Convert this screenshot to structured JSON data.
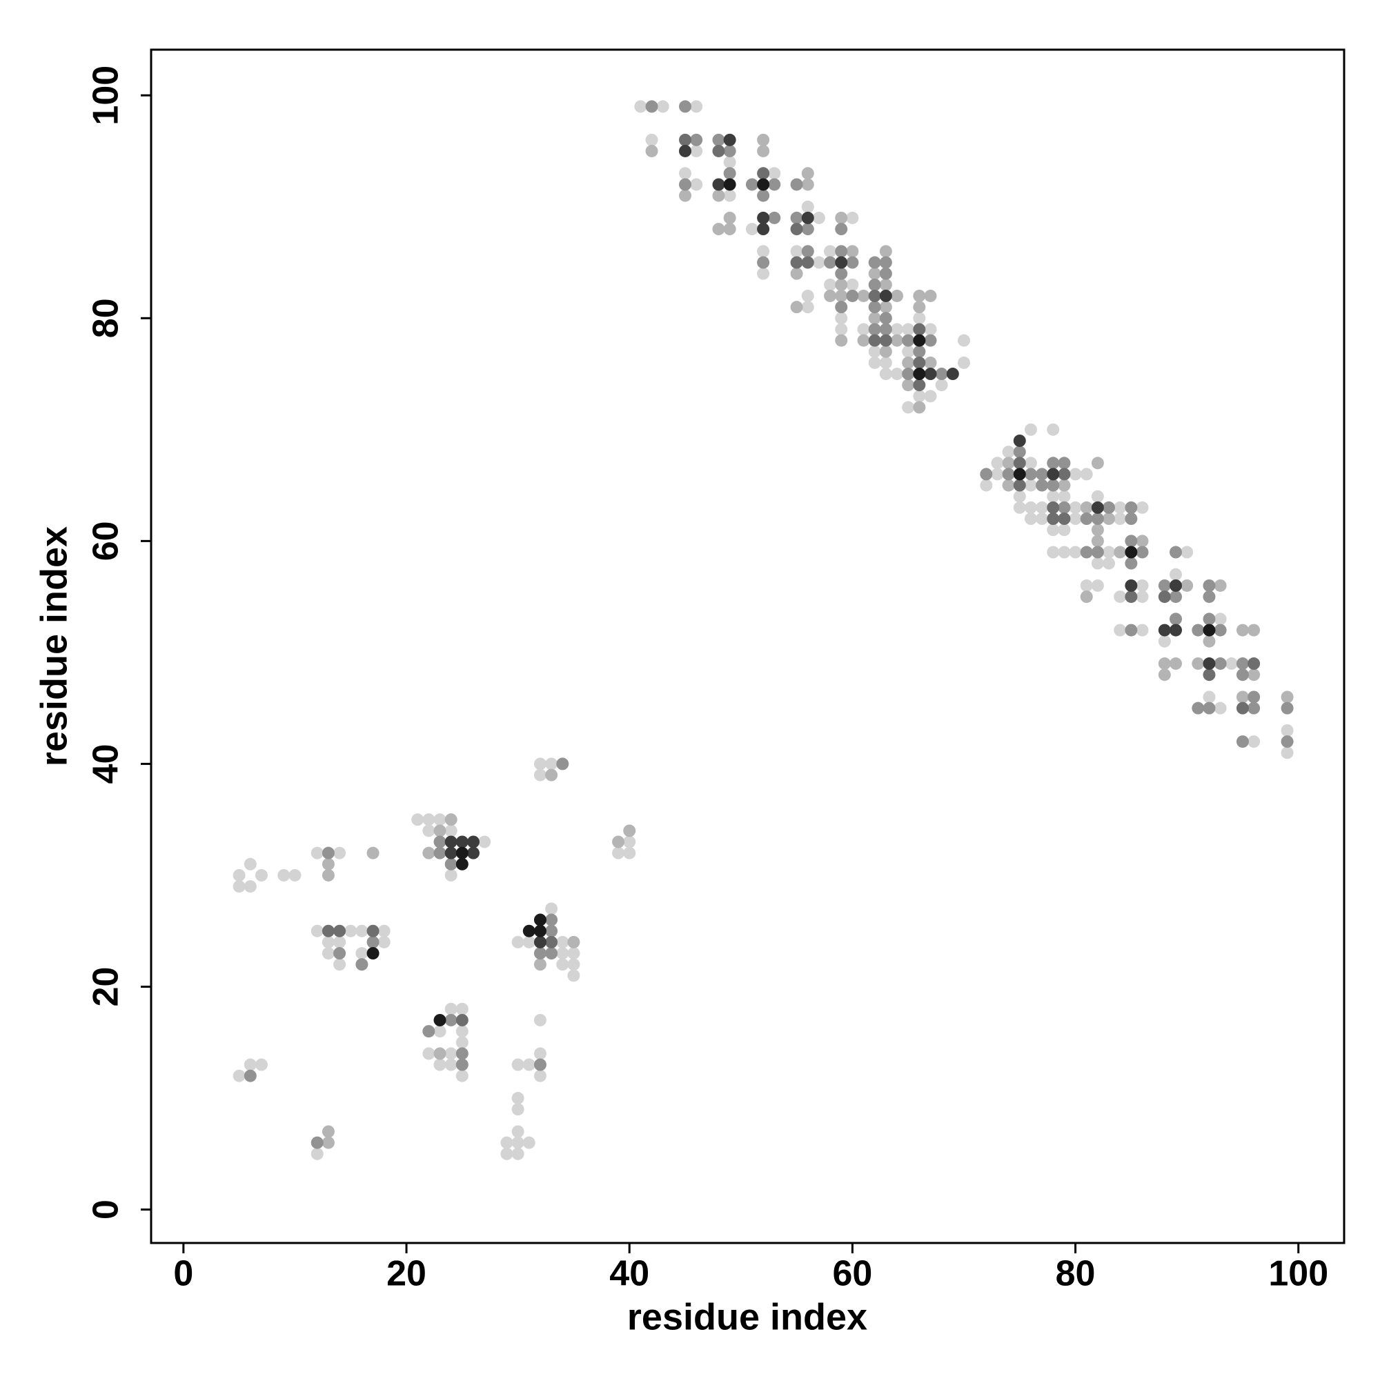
{
  "chart_data": {
    "type": "scatter",
    "x_label": "residue index",
    "y_label": "residue index",
    "xlim": [
      -2.9,
      104.1
    ],
    "ylim": [
      -3,
      104.1
    ],
    "xticks": [
      0,
      20,
      40,
      60,
      80,
      100
    ],
    "yticks": [
      0,
      20,
      40,
      60,
      80,
      100
    ],
    "series": [
      {
        "color": "#d3d3d3",
        "x": [
          5,
          5,
          6,
          6,
          7,
          9,
          10,
          12,
          14,
          12,
          15,
          16,
          18,
          13,
          14,
          13,
          14,
          16,
          18,
          5,
          6,
          7,
          12,
          21,
          22,
          23,
          22,
          24,
          27,
          24,
          32,
          33,
          32,
          40,
          39,
          40,
          33,
          30,
          31,
          34,
          34,
          35,
          34,
          35,
          35,
          24,
          25,
          23,
          25,
          25,
          22,
          24,
          23,
          24,
          25,
          32,
          32,
          30,
          31,
          32,
          30,
          30,
          30,
          29,
          30,
          31,
          29,
          30,
          41,
          43,
          46,
          42,
          46,
          49,
          45,
          53,
          46,
          49,
          56,
          57,
          60,
          51,
          52,
          55,
          58,
          57,
          52,
          58,
          60,
          56,
          56,
          59,
          66,
          59,
          61,
          64,
          65,
          67,
          70,
          62,
          65,
          62,
          63,
          70,
          63,
          64,
          68,
          66,
          67,
          65,
          76,
          78,
          74,
          73,
          76,
          73,
          80,
          81,
          72,
          76,
          75,
          78,
          79,
          82,
          75,
          76,
          77,
          80,
          84,
          86,
          76,
          77,
          80,
          84,
          78,
          79,
          78,
          79,
          80,
          83,
          90,
          82,
          83,
          89,
          81,
          82,
          86,
          84,
          86,
          93,
          84,
          86,
          88,
          94,
          92,
          93,
          99,
          96,
          99
        ],
        "values": [
          30,
          29,
          31,
          29,
          30,
          30,
          30,
          32,
          32,
          25,
          25,
          25,
          25,
          24,
          24,
          23,
          22,
          23,
          24,
          12,
          13,
          13,
          5,
          35,
          35,
          35,
          34,
          34,
          33,
          30,
          40,
          40,
          39,
          33,
          32,
          32,
          27,
          24,
          24,
          24,
          23,
          23,
          22,
          22,
          21,
          18,
          18,
          16,
          16,
          15,
          14,
          14,
          13,
          13,
          12,
          17,
          14,
          13,
          13,
          12,
          10,
          9,
          7,
          6,
          6,
          6,
          5,
          5,
          99,
          99,
          99,
          96,
          95,
          94,
          93,
          93,
          92,
          91,
          90,
          89,
          89,
          88,
          86,
          86,
          86,
          85,
          84,
          83,
          83,
          82,
          81,
          80,
          80,
          79,
          79,
          79,
          79,
          79,
          78,
          77,
          77,
          76,
          76,
          76,
          75,
          75,
          74,
          73,
          73,
          72,
          70,
          70,
          68,
          67,
          67,
          66,
          66,
          66,
          65,
          65,
          64,
          64,
          64,
          64,
          63,
          63,
          63,
          63,
          63,
          63,
          62,
          62,
          62,
          62,
          61,
          61,
          59,
          59,
          59,
          59,
          59,
          58,
          58,
          57,
          56,
          56,
          56,
          55,
          55,
          53,
          52,
          52,
          51,
          49,
          46,
          45,
          43,
          42,
          41
        ]
      },
      {
        "color": "#b4b4b4",
        "x": [
          13,
          13,
          17,
          13,
          13,
          24,
          23,
          22,
          33,
          39,
          40,
          35,
          32,
          23,
          42,
          52,
          52,
          56,
          56,
          45,
          48,
          49,
          59,
          48,
          49,
          60,
          63,
          55,
          62,
          59,
          63,
          58,
          59,
          61,
          64,
          66,
          67,
          55,
          63,
          66,
          62,
          59,
          61,
          64,
          63,
          65,
          67,
          65,
          66,
          74,
          82,
          74,
          79,
          81,
          83,
          82,
          82,
          86,
          84,
          90,
          93,
          81,
          95,
          96,
          92,
          88,
          89,
          91,
          88,
          96,
          95,
          99
        ],
        "values": [
          31,
          30,
          32,
          7,
          6,
          35,
          34,
          32,
          39,
          33,
          34,
          24,
          22,
          14,
          95,
          96,
          95,
          93,
          92,
          91,
          91,
          89,
          89,
          88,
          88,
          86,
          86,
          84,
          84,
          83,
          83,
          82,
          82,
          82,
          82,
          82,
          82,
          81,
          81,
          81,
          80,
          78,
          78,
          78,
          77,
          76,
          76,
          74,
          72,
          67,
          67,
          65,
          65,
          63,
          62,
          61,
          60,
          60,
          59,
          56,
          56,
          55,
          52,
          52,
          51,
          49,
          49,
          49,
          48,
          48,
          46,
          46
        ]
      },
      {
        "color": "#929292",
        "x": [
          13,
          17,
          14,
          16,
          6,
          12,
          23,
          23,
          24,
          34,
          33,
          33,
          32,
          33,
          24,
          22,
          25,
          25,
          32,
          42,
          45,
          46,
          48,
          49,
          49,
          45,
          51,
          53,
          55,
          52,
          53,
          55,
          56,
          59,
          56,
          59,
          52,
          58,
          60,
          62,
          63,
          59,
          63,
          62,
          60,
          59,
          62,
          63,
          62,
          63,
          65,
          67,
          66,
          65,
          68,
          75,
          78,
          79,
          72,
          74,
          76,
          77,
          77,
          78,
          79,
          83,
          85,
          81,
          82,
          85,
          85,
          81,
          82,
          86,
          89,
          85,
          88,
          92,
          89,
          92,
          89,
          92,
          85,
          91,
          93,
          93,
          95,
          95,
          96,
          91,
          92,
          96,
          99,
          95,
          99
        ],
        "values": [
          32,
          24,
          23,
          22,
          12,
          6,
          33,
          32,
          31,
          40,
          26,
          25,
          23,
          23,
          17,
          16,
          14,
          13,
          13,
          99,
          99,
          96,
          96,
          95,
          93,
          92,
          92,
          92,
          92,
          91,
          89,
          89,
          88,
          88,
          86,
          86,
          85,
          85,
          85,
          85,
          85,
          84,
          84,
          83,
          82,
          81,
          81,
          80,
          79,
          79,
          78,
          78,
          77,
          75,
          75,
          68,
          67,
          67,
          66,
          66,
          66,
          66,
          65,
          65,
          63,
          63,
          63,
          62,
          62,
          62,
          60,
          59,
          59,
          59,
          59,
          58,
          56,
          56,
          55,
          55,
          53,
          53,
          52,
          52,
          52,
          49,
          49,
          48,
          46,
          45,
          45,
          45,
          45,
          42,
          42
        ]
      },
      {
        "color": "#6e6e6e",
        "x": [
          13,
          14,
          17,
          25,
          33,
          45,
          48,
          52,
          55,
          55,
          56,
          62,
          66,
          62,
          63,
          66,
          66,
          75,
          79,
          75,
          78,
          78,
          79,
          85,
          88,
          92,
          96,
          95
        ],
        "values": [
          25,
          25,
          25,
          17,
          24,
          96,
          95,
          93,
          88,
          85,
          85,
          82,
          79,
          78,
          78,
          76,
          74,
          67,
          66,
          65,
          63,
          62,
          62,
          55,
          55,
          48,
          49,
          45
        ]
      },
      {
        "color": "#3c3c3c",
        "x": [
          24,
          25,
          26,
          24,
          26,
          32,
          49,
          45,
          48,
          52,
          56,
          52,
          59,
          63,
          67,
          69,
          75,
          78,
          82,
          85,
          89,
          88,
          89,
          92
        ],
        "values": [
          33,
          33,
          33,
          32,
          32,
          24,
          96,
          95,
          92,
          89,
          89,
          88,
          85,
          82,
          75,
          75,
          69,
          66,
          63,
          56,
          56,
          52,
          52,
          49
        ]
      },
      {
        "color": "#1a1a1a",
        "x": [
          17,
          25,
          25,
          32,
          31,
          32,
          23,
          49,
          52,
          66,
          66,
          75,
          85,
          92
        ],
        "values": [
          23,
          32,
          31,
          26,
          25,
          25,
          17,
          92,
          92,
          78,
          75,
          66,
          59,
          52
        ]
      }
    ]
  }
}
